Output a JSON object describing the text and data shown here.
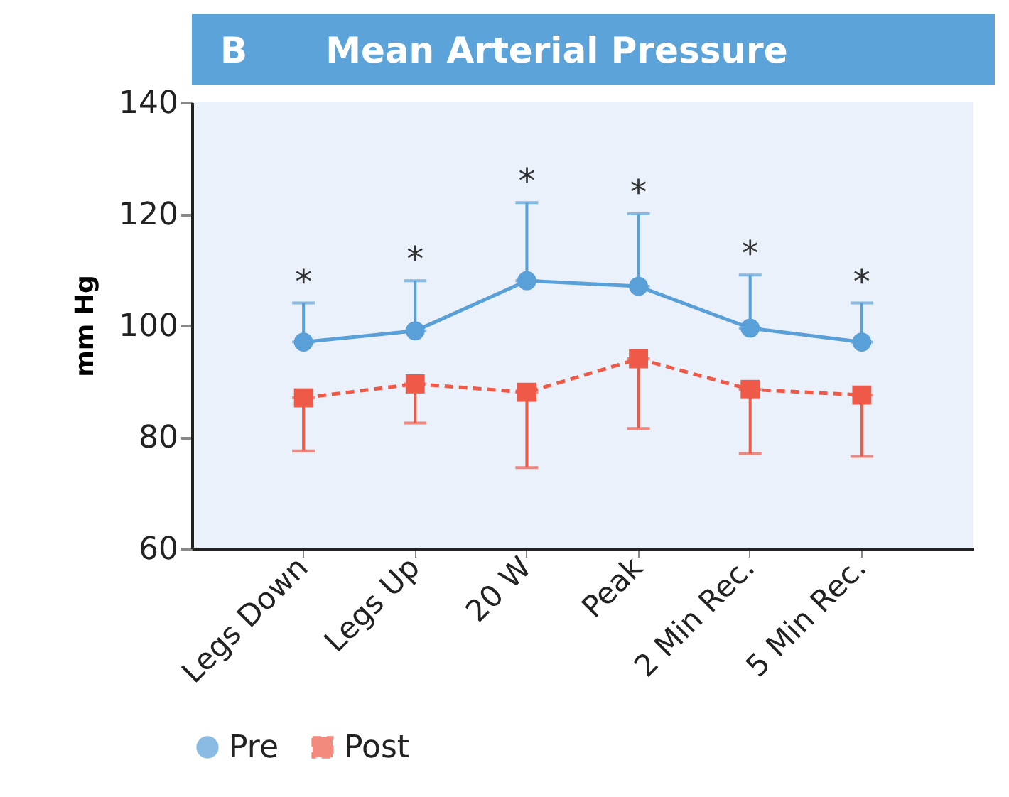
{
  "chart_data": {
    "type": "line",
    "title": "Mean Arterial Pressure",
    "ylabel": "mm Hg",
    "categories": [
      "Legs Down",
      "Legs Up",
      "20 W",
      "Peak",
      "2 Min Rec.",
      "5 Min Rec."
    ],
    "series": [
      {
        "name": "Pre",
        "color": "#5aa0d8",
        "marker": "circle",
        "line_style": "solid",
        "values": [
          97,
          99,
          108,
          107,
          99.5,
          97
        ],
        "errors": [
          [
            97,
            104
          ],
          [
            99,
            108
          ],
          [
            108,
            122
          ],
          [
            107,
            120
          ],
          [
            99.5,
            109
          ],
          [
            97,
            104
          ]
        ]
      },
      {
        "name": "Post",
        "color": "#ef5a48",
        "marker": "square",
        "line_style": "dashed",
        "values": [
          87,
          89.5,
          88,
          94,
          88.5,
          87.5
        ],
        "errors": [
          [
            77.5,
            87
          ],
          [
            82.5,
            89.5
          ],
          [
            74.5,
            88
          ],
          [
            81.5,
            94
          ],
          [
            77,
            88.5
          ],
          [
            76.5,
            87.5
          ]
        ]
      }
    ],
    "ylim": [
      60,
      140
    ],
    "yticks": [
      60,
      80,
      100,
      120,
      140
    ],
    "grid": false,
    "legend": "bottom",
    "annotations": [
      "B",
      "*",
      "*",
      "*",
      "*",
      "*",
      "*"
    ]
  }
}
